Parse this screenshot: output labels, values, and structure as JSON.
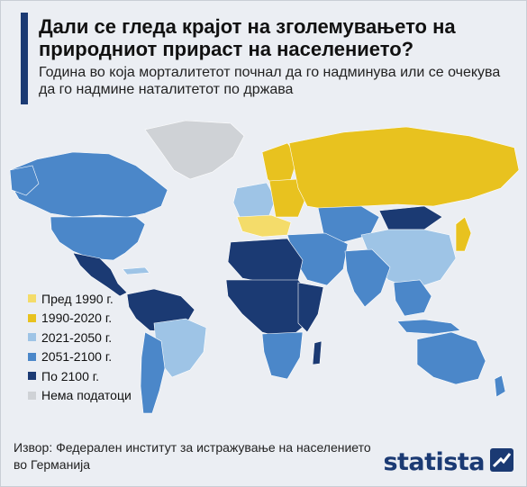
{
  "header": {
    "title": "Дали се гледа крајот на зголемувањето на природниот прираст на населението?",
    "subtitle": " Година во која морталитетот почнал да го надминува или се очекува да го надмине наталитетот по држава"
  },
  "legend": {
    "items": [
      {
        "label": "Пред 1990 г.",
        "color": "#f4dc6a"
      },
      {
        "label": "1990-2020 г.",
        "color": "#e8c21f"
      },
      {
        "label": "2021-2050 г.",
        "color": "#9ec4e6"
      },
      {
        "label": "2051-2100 г.",
        "color": "#4b87c9"
      },
      {
        "label": "По 2100 г.",
        "color": "#1b3a73"
      },
      {
        "label": "Нема податоци",
        "color": "#cfd2d6"
      }
    ]
  },
  "footer": {
    "source": "Извор: Федерален институт за истражување на населението во Германија",
    "brand": "statista"
  },
  "colors": {
    "accent": "#1b3a73",
    "background": "#ebeef3"
  }
}
